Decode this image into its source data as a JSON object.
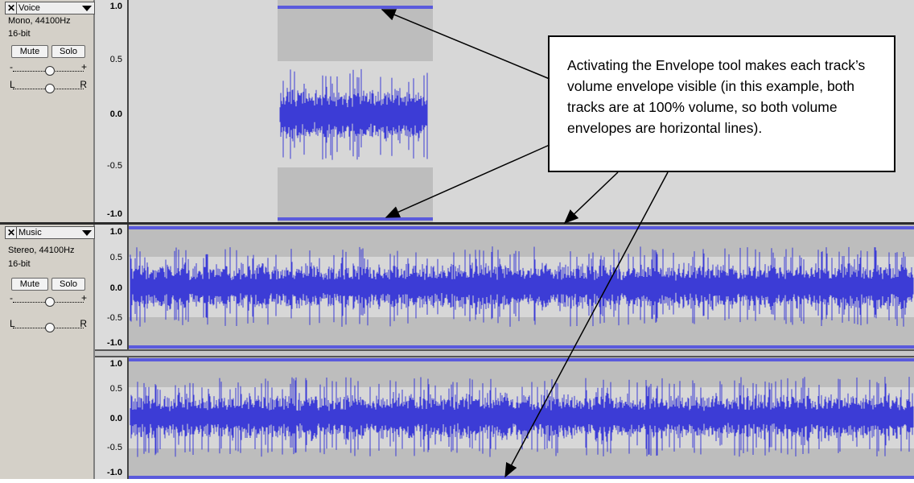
{
  "tracks": [
    {
      "name": "Voice",
      "info1": "Mono, 44100Hz",
      "info2": "16-bit",
      "mute": "Mute",
      "solo": "Solo",
      "gain_minus": "-",
      "gain_plus": "+",
      "pan_left": "L",
      "pan_right": "R",
      "scale": [
        "1.0",
        "0.5",
        "0.0",
        "-0.5",
        "-1.0"
      ]
    },
    {
      "name": "Music",
      "info1": "Stereo, 44100Hz",
      "info2": "16-bit",
      "mute": "Mute",
      "solo": "Solo",
      "gain_minus": "-",
      "gain_plus": "+",
      "pan_left": "L",
      "pan_right": "R",
      "scale": [
        "1.0",
        "0.5",
        "0.0",
        "-0.5",
        "-1.0"
      ],
      "scale2": [
        "1.0",
        "0.5",
        "0.0",
        "-0.5",
        "-1.0"
      ]
    }
  ],
  "callout": "Activating the Envelope tool makes each track’s volume envelope visible (in this example, both tracks are at 100% volume, so both volume envelopes are horizontal lines).",
  "colors": {
    "waveform": "#3c3cd6",
    "envelope": "#5a5adc",
    "panel": "#d4d0c8"
  },
  "icons": [
    "close-icon",
    "dropdown-arrow-icon",
    "gain-slider-knob",
    "pan-slider-knob"
  ]
}
